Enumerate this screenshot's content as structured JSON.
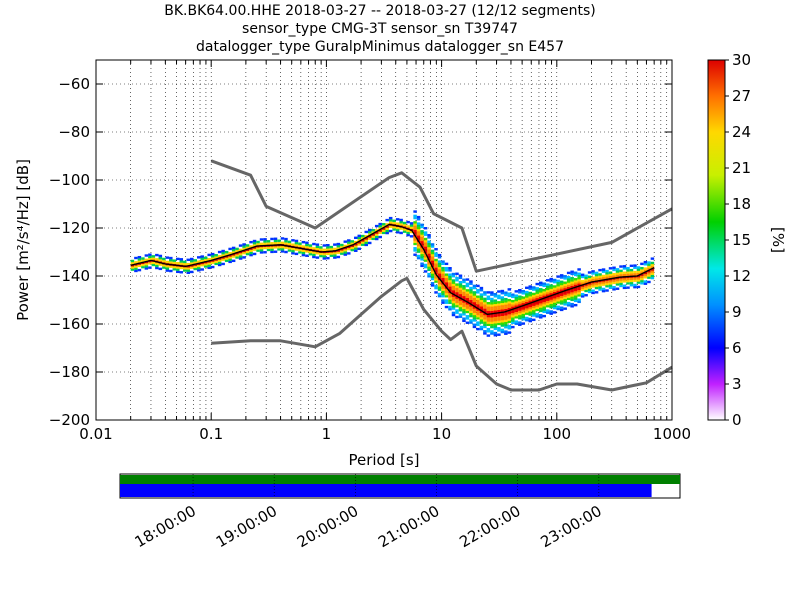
{
  "title_lines": [
    "BK.BK64.00.HHE   2018-03-27 -- 2018-03-27  (12/12 segments)",
    "sensor_type CMG-3T sensor_sn T39747",
    "datalogger_type GuralpMinimus datalogger_sn E457"
  ],
  "chart_data": {
    "type": "heatmap",
    "xlabel": "Period [s]",
    "ylabel": "Power [m²/s⁴/Hz] [dB]",
    "xscale": "log",
    "xlim": [
      0.01,
      1000
    ],
    "ylim": [
      -200,
      -50
    ],
    "x_ticks": [
      "0.01",
      "0.1",
      "1",
      "10",
      "100",
      "1000"
    ],
    "y_ticks": [
      "−200",
      "−180",
      "−160",
      "−140",
      "−120",
      "−100",
      "−80",
      "−60"
    ],
    "grid": true,
    "colorbar": {
      "label": "[%]",
      "range": [
        0,
        30
      ],
      "ticks": [
        "0",
        "3",
        "6",
        "9",
        "12",
        "15",
        "18",
        "21",
        "24",
        "27",
        "30"
      ]
    },
    "series": [
      {
        "name": "",
        "x": [
          0.1,
          0.22,
          0.3,
          0.8,
          3.5,
          4.5,
          6.5,
          8.5,
          15,
          20,
          300,
          1000
        ],
        "y": [
          -92,
          -98,
          -111,
          -120,
          -99,
          -97,
          -103,
          -114,
          -120,
          -138,
          -126,
          -112
        ]
      },
      {
        "name": "",
        "x": [
          0.1,
          0.22,
          0.4,
          0.8,
          1.3,
          2,
          3,
          4.5,
          5,
          7,
          10,
          12,
          15,
          20,
          30,
          40,
          70,
          100,
          150,
          300,
          600,
          1000
        ],
        "y": [
          -168,
          -167,
          -167,
          -169.5,
          -164,
          -156,
          -148.5,
          -142,
          -141,
          -154,
          -163,
          -166.5,
          -163,
          -177.5,
          -185,
          -187.5,
          -187.5,
          -185,
          -185,
          -187.5,
          -184.5,
          -178
        ]
      },
      {
        "name": "",
        "x": [
          0.02,
          0.03,
          0.04,
          0.06,
          0.1,
          0.15,
          0.25,
          0.4,
          0.6,
          0.9,
          1.2,
          1.7,
          2.5,
          3.5,
          4.5,
          5.5,
          7,
          9,
          12,
          17,
          25,
          35,
          50,
          80,
          120,
          200,
          350,
          500,
          700
        ],
        "y": [
          -135.5,
          -133.5,
          -135,
          -136,
          -133.5,
          -131,
          -127.5,
          -127,
          -128.5,
          -130,
          -129.5,
          -127,
          -122.5,
          -118.5,
          -119.5,
          -121,
          -129,
          -139.5,
          -147,
          -151,
          -156,
          -155,
          -152.5,
          -149,
          -146,
          -142.5,
          -140.5,
          -140,
          -136.5
        ]
      }
    ],
    "timeline": {
      "ticks": [
        "18:00:00",
        "19:00:00",
        "20:00:00",
        "21:00:00",
        "22:00:00",
        "23:00:00"
      ],
      "range_hours": [
        17.1,
        24.0
      ],
      "upper_band": {
        "color": "#008000",
        "start": 17.1,
        "end": 24.0
      },
      "lower_band": {
        "color": "#0000ff",
        "start": 17.1,
        "end": 23.65
      }
    }
  }
}
